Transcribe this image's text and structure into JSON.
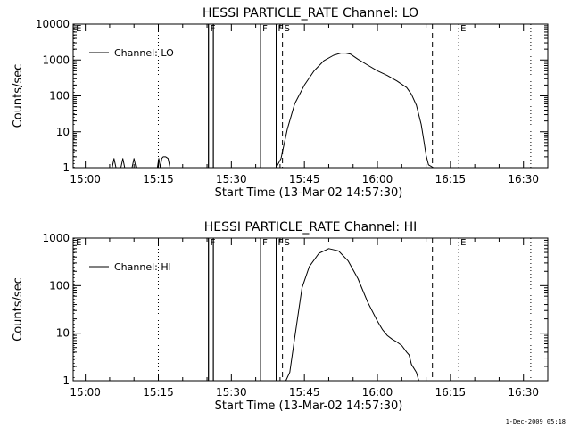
{
  "footer_timestamp": "1-Dec-2009 05:18",
  "chart_data": [
    {
      "type": "line",
      "title": "HESSI PARTICLE_RATE Channel: LO",
      "xlabel": "Start Time (13-Mar-02 14:57:30)",
      "ylabel": "Counts/sec",
      "x_unit": "minutes after 15:00",
      "xlim": [
        -2.5,
        95
      ],
      "ylim": [
        1,
        10000
      ],
      "yscale": "log",
      "x_ticks": [
        0,
        15,
        30,
        45,
        60,
        75,
        90
      ],
      "x_tick_labels": [
        "15:00",
        "15:15",
        "15:30",
        "15:45",
        "16:00",
        "16:15",
        "16:30"
      ],
      "y_ticks": [
        1,
        10,
        100,
        1000,
        10000
      ],
      "y_tick_labels": [
        "1",
        "10",
        "100",
        "1000",
        "10000"
      ],
      "legend": {
        "label": "Channel: LO",
        "position": "top-left"
      },
      "markers": [
        {
          "label": "E",
          "x": -2.3,
          "style": "dotted"
        },
        {
          "label": "",
          "x": 15,
          "style": "dotted"
        },
        {
          "label": "F",
          "x": 25.3,
          "style": "solid"
        },
        {
          "label": "",
          "x": 26.3,
          "style": "solid"
        },
        {
          "label": "F",
          "x": 36,
          "style": "solid"
        },
        {
          "label": "F",
          "x": 39.2,
          "style": "solid"
        },
        {
          "label": "S",
          "x": 40.5,
          "style": "dashed"
        },
        {
          "label": "",
          "x": 71.3,
          "style": "dashed"
        },
        {
          "label": "E",
          "x": 76.7,
          "style": "dotted"
        },
        {
          "label": "",
          "x": 91.5,
          "style": "dotted"
        }
      ],
      "series": [
        {
          "x": [
            -2.5,
            5.5,
            5.9,
            6.3,
            7.3,
            7.7,
            8.1,
            9.6,
            10,
            10.4,
            14.8,
            15.1,
            15.4,
            15.7,
            16,
            16.5,
            17,
            17.4,
            25.3,
            25.3,
            26.3,
            26.3,
            36,
            36,
            39.2,
            39.2,
            40.2,
            41.5,
            43,
            45,
            47,
            49,
            51,
            52.5,
            53.5,
            54.5,
            56,
            58,
            60,
            62,
            64,
            66,
            67,
            68,
            69,
            69.5,
            70,
            70.5,
            71.5
          ],
          "y": [
            1,
            1,
            1.8,
            1,
            1,
            1.8,
            1,
            1,
            1.8,
            1,
            1,
            1.8,
            1,
            1.8,
            2,
            2,
            1.8,
            1,
            1,
            10000,
            10000,
            1,
            1,
            10000,
            10000,
            1,
            1.8,
            12,
            60,
            200,
            500,
            950,
            1350,
            1550,
            1550,
            1450,
            1050,
            720,
            500,
            370,
            260,
            170,
            110,
            55,
            16,
            6,
            2.2,
            1.2,
            1
          ]
        }
      ]
    },
    {
      "type": "line",
      "title": "HESSI PARTICLE_RATE Channel: HI",
      "xlabel": "Start Time (13-Mar-02 14:57:30)",
      "ylabel": "Counts/sec",
      "x_unit": "minutes after 15:00",
      "xlim": [
        -2.5,
        95
      ],
      "ylim": [
        1,
        1000
      ],
      "yscale": "log",
      "x_ticks": [
        0,
        15,
        30,
        45,
        60,
        75,
        90
      ],
      "x_tick_labels": [
        "15:00",
        "15:15",
        "15:30",
        "15:45",
        "16:00",
        "16:15",
        "16:30"
      ],
      "y_ticks": [
        1,
        10,
        100,
        1000
      ],
      "y_tick_labels": [
        "1",
        "10",
        "100",
        "1000"
      ],
      "legend": {
        "label": "Channel: HI",
        "position": "top-left"
      },
      "markers": [
        {
          "label": "E",
          "x": -2.3,
          "style": "dotted"
        },
        {
          "label": "",
          "x": 15,
          "style": "dotted"
        },
        {
          "label": "F",
          "x": 25.3,
          "style": "solid"
        },
        {
          "label": "",
          "x": 26.3,
          "style": "solid"
        },
        {
          "label": "F",
          "x": 36,
          "style": "solid"
        },
        {
          "label": "F",
          "x": 39.2,
          "style": "solid"
        },
        {
          "label": "S",
          "x": 40.5,
          "style": "dashed"
        },
        {
          "label": "",
          "x": 71.3,
          "style": "dashed"
        },
        {
          "label": "E",
          "x": 76.7,
          "style": "dotted"
        },
        {
          "label": "",
          "x": 91.5,
          "style": "dotted"
        }
      ],
      "series": [
        {
          "x": [
            -2.5,
            25.3,
            25.3,
            26.3,
            26.3,
            36,
            36,
            39.2,
            39.2,
            41.2,
            42,
            43,
            44.5,
            46,
            48,
            50,
            52,
            54,
            56,
            58,
            60,
            61,
            62,
            63,
            64,
            65,
            66,
            66.5,
            67,
            68,
            68.5
          ],
          "y": [
            1,
            1,
            1000,
            1000,
            1,
            1,
            1000,
            1000,
            1,
            1,
            1.5,
            8,
            90,
            250,
            480,
            600,
            540,
            330,
            140,
            45,
            18,
            12,
            9,
            7.5,
            6.5,
            5.5,
            4,
            3.5,
            2.2,
            1.5,
            1
          ]
        }
      ]
    }
  ]
}
